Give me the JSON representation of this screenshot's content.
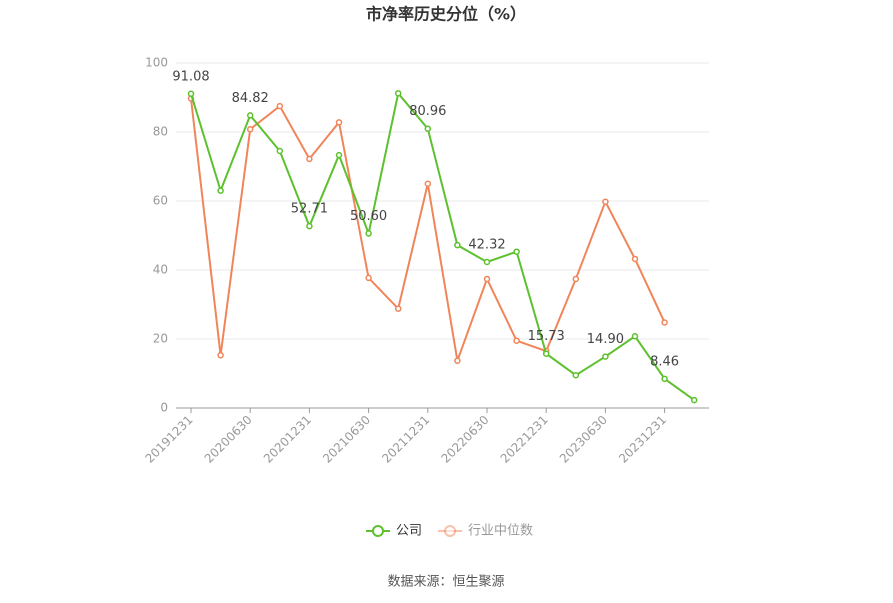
{
  "chart_data": {
    "type": "line",
    "title": "市净率历史分位（%）",
    "source": "数据来源：恒生聚源",
    "categories": [
      "20191231",
      null,
      "20200630",
      null,
      "20201231",
      null,
      "20210630",
      null,
      "20211231",
      null,
      "20220630",
      null,
      "20221231",
      null,
      "20230630",
      null,
      "20231231",
      null
    ],
    "series": [
      {
        "name": "公司",
        "color": "#5cc12d",
        "values": [
          91.08,
          63,
          84.82,
          74.5,
          52.71,
          73.3,
          50.6,
          91.2,
          80.96,
          47.2,
          42.32,
          45.3,
          15.73,
          9.5,
          14.9,
          20.8,
          8.46,
          2.3
        ],
        "value_labels": [
          "91.08",
          null,
          "84.82",
          null,
          "52.71",
          null,
          "50.60",
          null,
          "80.96",
          null,
          "42.32",
          null,
          "15.73",
          null,
          "14.90",
          null,
          "8.46",
          null
        ]
      },
      {
        "name": "行业中位数",
        "color": "#f0855a",
        "values": [
          89.7,
          15.3,
          80.8,
          87.5,
          72.2,
          82.8,
          37.7,
          28.8,
          65.0,
          13.7,
          37.4,
          19.5,
          16.5,
          37.4,
          59.8,
          43.2,
          24.8,
          null
        ]
      }
    ],
    "ylim": [
      0,
      100
    ],
    "yticks": [
      0,
      20,
      40,
      60,
      80,
      100
    ],
    "grid": true
  }
}
